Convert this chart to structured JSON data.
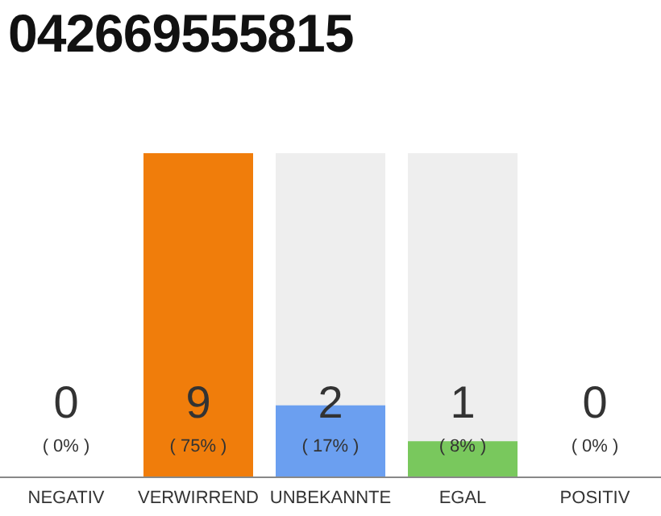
{
  "chart_data": {
    "type": "bar",
    "title": "042669555815",
    "categories": [
      "NEGATIV",
      "VERWIRREND",
      "UNBEKANNTE",
      "EGAL",
      "POSITIV"
    ],
    "values": [
      0,
      9,
      2,
      1,
      0
    ],
    "colors": [
      "#9e9e9e",
      "#f07d0b",
      "#6b9ff0",
      "#79c85d",
      "#9e9e9e"
    ],
    "data_labels": true,
    "annotations": [
      "( 0% )",
      "( 75% )",
      "( 17% )",
      "( 8% )",
      "( 0% )"
    ]
  }
}
